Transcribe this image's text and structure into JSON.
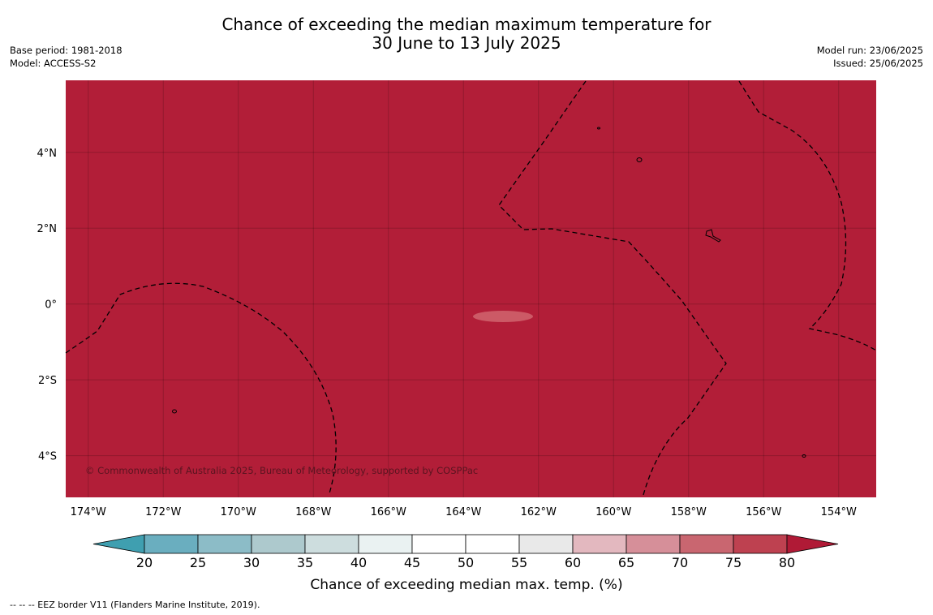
{
  "title": {
    "line1": "Chance of exceeding the median maximum temperature for",
    "line2": "30 June to 13 July 2025"
  },
  "meta_left": {
    "base_period": "Base period: 1981-2018",
    "model": "Model: ACCESS-S2"
  },
  "meta_right": {
    "model_run": "Model run: 23/06/2025",
    "issued": "Issued: 25/06/2025"
  },
  "map": {
    "lon_range": [
      -174.6,
      -153.0
    ],
    "lat_range": [
      -5.1,
      5.9
    ],
    "lon_ticks": [
      "174°W",
      "172°W",
      "170°W",
      "168°W",
      "166°W",
      "164°W",
      "162°W",
      "160°W",
      "158°W",
      "156°W",
      "154°W"
    ],
    "lat_ticks": [
      "4°N",
      "2°N",
      "0°",
      "2°S",
      "4°S"
    ],
    "fill_color": "#b21e38",
    "anomaly_patch_color": "#cc5a66",
    "gridlines": true,
    "boundary_style": "dashed",
    "copyright": "© Commonwealth of Australia 2025, Bureau of Meteorology, supported by COSPPac"
  },
  "colorbar": {
    "title": "Chance of exceeding median max. temp. (%)",
    "labels": [
      "20",
      "25",
      "30",
      "35",
      "40",
      "45",
      "50",
      "55",
      "60",
      "65",
      "70",
      "75",
      "80"
    ],
    "colors": [
      "#3f9fb0",
      "#6aaebf",
      "#8cbcc7",
      "#adc9cd",
      "#cdddde",
      "#eaf2f2",
      "#ffffff",
      "#ffffff",
      "#e9e9e9",
      "#e3b8bf",
      "#d68f99",
      "#c96670",
      "#be4150",
      "#b01a36"
    ]
  },
  "footer": "--  --  -- EEZ border V11 (Flanders Marine Institute, 2019)."
}
